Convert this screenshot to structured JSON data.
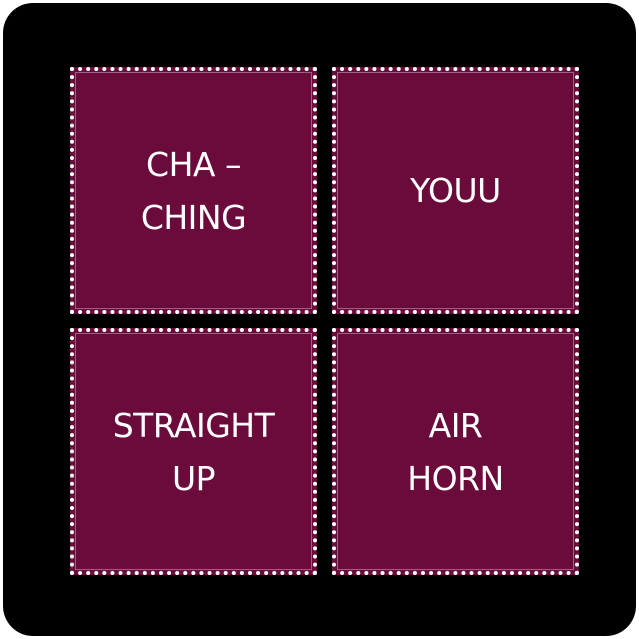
{
  "colors": {
    "background": "#000000",
    "pad_fill": "#6b0b3b",
    "pad_border": "#ffffff",
    "text": "#ffffff"
  },
  "pads": [
    {
      "label": "CHA –\nCHING"
    },
    {
      "label": "YOUU"
    },
    {
      "label": "STRAIGHT\nUP"
    },
    {
      "label": "AIR\nHORN"
    }
  ]
}
